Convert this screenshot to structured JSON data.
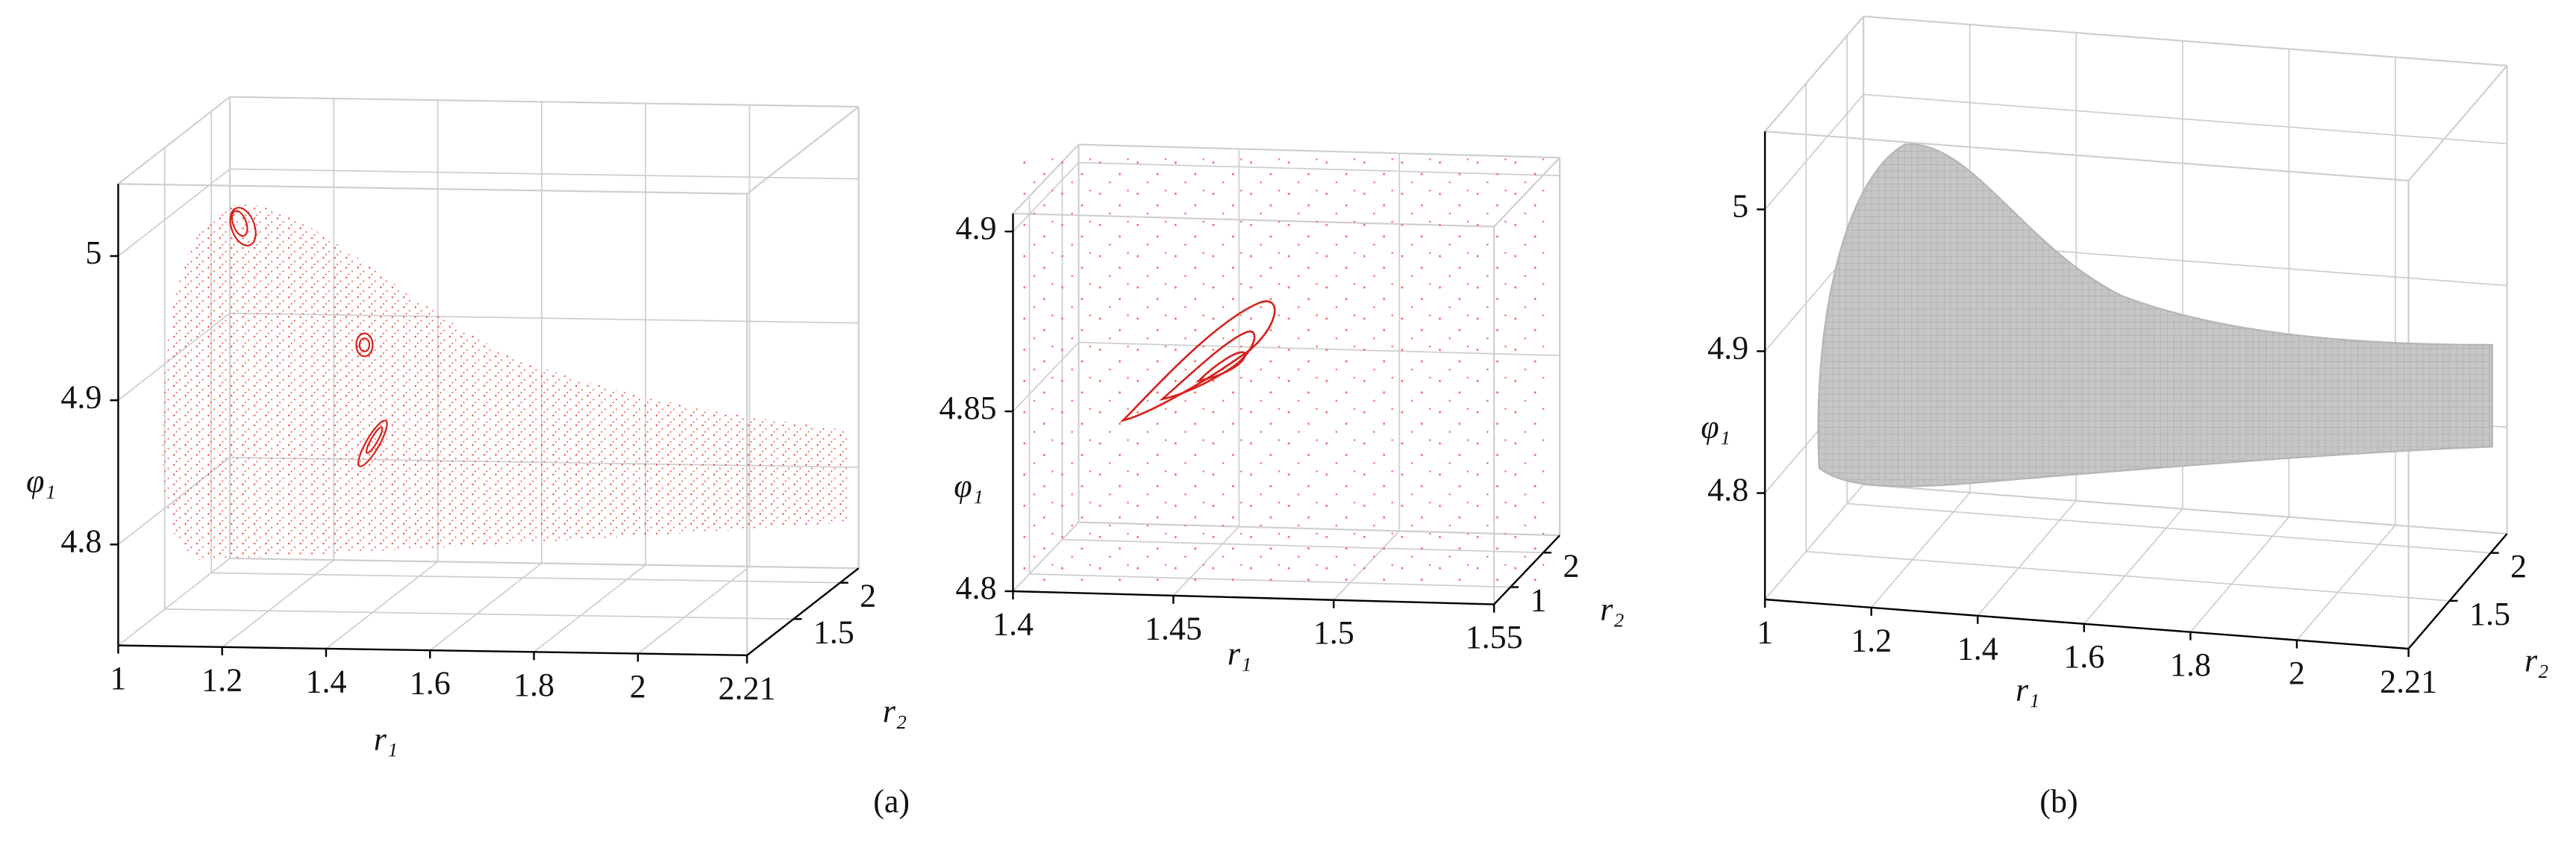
{
  "chart_data": [
    {
      "type": "scatter3d",
      "xlabel": "r₁",
      "ylabel": "r₂",
      "zlabel": "φ₁",
      "xlim": [
        1,
        2.21
      ],
      "ylim": [
        1,
        2.2
      ],
      "zlim": [
        4.73,
        5.05
      ],
      "xticks": [
        1,
        1.2,
        1.4,
        1.6,
        1.8,
        2,
        2.21
      ],
      "yticks": [
        1.5,
        2
      ],
      "zticks": [
        4.8,
        4.9,
        5
      ],
      "color": "#e8322d"
    },
    {
      "type": "scatter3d",
      "xlabel": "r₁",
      "ylabel": "r₂",
      "zlabel": "φ₁",
      "xlim": [
        1.4,
        1.55
      ],
      "ylim": [
        0.5,
        2.5
      ],
      "zlim": [
        4.8,
        4.905
      ],
      "xticks": [
        1.4,
        1.45,
        1.5,
        1.55
      ],
      "yticks": [
        1,
        2
      ],
      "zticks": [
        4.8,
        4.85,
        4.9
      ],
      "color": "#e8322d"
    },
    {
      "type": "surface3d",
      "xlabel": "r₁",
      "ylabel": "r₂",
      "zlabel": "φ₁",
      "xlim": [
        1,
        2.21
      ],
      "ylim": [
        1,
        2.2
      ],
      "zlim": [
        4.725,
        5.055
      ],
      "xticks": [
        1,
        1.2,
        1.4,
        1.6,
        1.8,
        2,
        2.21
      ],
      "yticks": [
        1.5,
        2
      ],
      "zticks": [
        4.8,
        4.9,
        5
      ],
      "color": "#c4c4c4"
    }
  ],
  "captions": [
    "(a)",
    "(b)"
  ]
}
